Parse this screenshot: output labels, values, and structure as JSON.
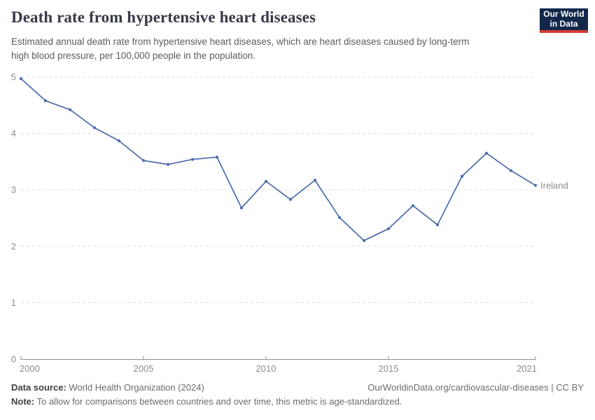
{
  "header": {
    "title": "Death rate from hypertensive heart diseases",
    "subtitle": "Estimated annual death rate from hypertensive heart diseases, which are heart diseases caused by long-term\nhigh blood pressure, per 100,000 people in the population.",
    "logo": {
      "line1": "Our World",
      "line2": "in Data",
      "bg_color": "#12284b",
      "accent_color": "#d23b33"
    }
  },
  "chart_data": {
    "type": "line",
    "title": "Death rate from hypertensive heart diseases",
    "xlabel": "",
    "ylabel": "",
    "x": [
      2000,
      2001,
      2002,
      2003,
      2004,
      2005,
      2006,
      2007,
      2008,
      2009,
      2010,
      2011,
      2012,
      2013,
      2014,
      2015,
      2016,
      2017,
      2018,
      2019,
      2020,
      2021
    ],
    "series": [
      {
        "name": "Ireland",
        "color": "#4c6bab",
        "values": [
          4.97,
          4.58,
          4.42,
          4.1,
          3.87,
          3.52,
          3.45,
          3.54,
          3.58,
          2.68,
          3.15,
          2.83,
          3.17,
          2.51,
          2.1,
          2.31,
          2.72,
          2.38,
          3.24,
          3.65,
          3.34,
          3.08
        ]
      }
    ],
    "xlim": [
      2000,
      2021
    ],
    "ylim": [
      0,
      5
    ],
    "yticks": [
      0,
      1,
      2,
      3,
      4,
      5
    ],
    "xticks": [
      2000,
      2005,
      2010,
      2015,
      2021
    ],
    "grid": "horizontal dashed",
    "legend": "end-of-line label",
    "colors": {
      "grid": "#dedede",
      "axis": "#8f8f8f",
      "tick_text": "#8c8c8c"
    }
  },
  "footer": {
    "data_source_label": "Data source:",
    "data_source_value": "World Health Organization (2024)",
    "attribution": "OurWorldinData.org/cardiovascular-diseases | CC BY",
    "note_label": "Note:",
    "note_value": "To allow for comparisons between countries and over time, this metric is age-standardized."
  }
}
